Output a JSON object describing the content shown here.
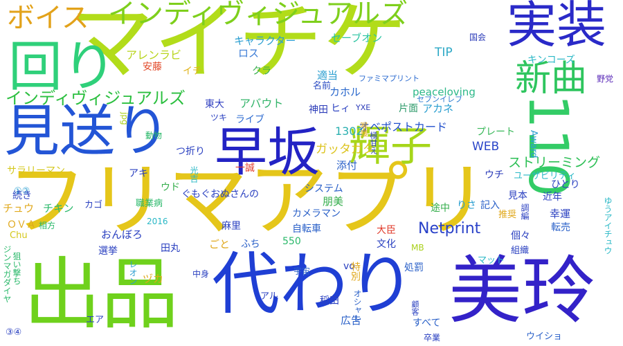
{
  "cloud": {
    "words": [
      {
        "text": "フリマアプリ",
        "color": "#e5c61a",
        "vertical": false
      },
      {
        "text": "マイチケ",
        "color": "#b2dc1a",
        "vertical": false
      },
      {
        "text": "美玲",
        "color": "#3322c8",
        "vertical": false
      },
      {
        "text": "出品",
        "color": "#6fd11c",
        "vertical": false
      },
      {
        "text": "代わり",
        "color": "#1f3fd4",
        "vertical": false
      },
      {
        "text": "早坂",
        "color": "#2323c4",
        "vertical": false
      },
      {
        "text": "見送り",
        "color": "#2355d6",
        "vertical": false
      },
      {
        "text": "回り",
        "color": "#2fd07a",
        "vertical": false
      },
      {
        "text": "実装",
        "color": "#2a2ac8",
        "vertical": false
      },
      {
        "text": "110",
        "color": "#33cc66",
        "vertical": true
      },
      {
        "text": "輝子",
        "color": "#a6d61a",
        "vertical": false
      },
      {
        "text": "新曲",
        "color": "#2ec55e",
        "vertical": false
      },
      {
        "text": "インディヴィジュアルズ",
        "color": "#7ecf1c",
        "vertical": false
      },
      {
        "text": "ボイス",
        "color": "#e2a21a",
        "vertical": false
      },
      {
        "text": "インディヴィジュアルズ",
        "color": "#2bbf3f",
        "vertical": false
      },
      {
        "text": "Netprint",
        "color": "#2840c8",
        "vertical": false
      },
      {
        "text": "ストリーミング",
        "color": "#2cbf55",
        "vertical": false
      },
      {
        "text": "WEB",
        "color": "#2a45c8",
        "vertical": false
      },
      {
        "text": "ガッタガタ",
        "color": "#dcc31c",
        "vertical": false
      },
      {
        "text": "オベポストカード",
        "color": "#2250cc",
        "vertical": false
      },
      {
        "text": "1302",
        "color": "#2bb0b0",
        "vertical": false
      },
      {
        "text": "アバウト",
        "color": "#33b46a",
        "vertical": false
      },
      {
        "text": "ライブ",
        "color": "#2d6bd0",
        "vertical": false
      },
      {
        "text": "東大",
        "color": "#2f3fc0",
        "vertical": false
      },
      {
        "text": "アレンラビ",
        "color": "#b8d41c",
        "vertical": false
      },
      {
        "text": "キャラクター",
        "color": "#2a9ed0",
        "vertical": false
      },
      {
        "text": "セーブオン",
        "color": "#2cc4a2",
        "vertical": false
      },
      {
        "text": "ロス",
        "color": "#3a7bd6",
        "vertical": false
      },
      {
        "text": "クラ",
        "color": "#33ad4a",
        "vertical": false
      },
      {
        "text": "イチ",
        "color": "#e0b41c",
        "vertical": false
      },
      {
        "text": "安藤",
        "color": "#e24a2a",
        "vertical": false
      },
      {
        "text": "TIP",
        "color": "#2da8c6",
        "vertical": false
      },
      {
        "text": "適当",
        "color": "#2a9ed0",
        "vertical": false
      },
      {
        "text": "名前",
        "color": "#2a4ac2",
        "vertical": false
      },
      {
        "text": "カホル",
        "color": "#2a68cc",
        "vertical": false
      },
      {
        "text": "ヒィ",
        "color": "#2a40c0",
        "vertical": false
      },
      {
        "text": "神田",
        "color": "#2a3ab8",
        "vertical": false
      },
      {
        "text": "YXE",
        "color": "#2a3ab8",
        "vertical": false
      },
      {
        "text": "peaceloving",
        "color": "#2cb888",
        "vertical": false
      },
      {
        "text": "アカネ",
        "color": "#2a9ed0",
        "vertical": false
      },
      {
        "text": "片面",
        "color": "#2c9a6a",
        "vertical": false
      },
      {
        "text": "ファミマプリント",
        "color": "#2a6ad0",
        "vertical": false
      },
      {
        "text": "セブンイレブ",
        "color": "#2a7ad0",
        "vertical": false
      },
      {
        "text": "国会",
        "color": "#2a3ab8",
        "vertical": false
      },
      {
        "text": "キンコーズ",
        "color": "#2ab8c6",
        "vertical": false
      },
      {
        "text": "野党",
        "color": "#5a2ab8",
        "vertical": false
      },
      {
        "text": "プレート",
        "color": "#3ab85a",
        "vertical": false
      },
      {
        "text": "Award",
        "color": "#2a9ed0",
        "vertical": true
      },
      {
        "text": "添付",
        "color": "#2a60c8",
        "vertical": false
      },
      {
        "text": "ウチ",
        "color": "#2a3ab8",
        "vertical": false
      },
      {
        "text": "ユーザビリティ",
        "color": "#2ab8c6",
        "vertical": false
      },
      {
        "text": "一誠",
        "color": "#e03a2a",
        "vertical": false
      },
      {
        "text": "動物",
        "color": "#2ab86a",
        "vertical": false
      },
      {
        "text": "つ折り",
        "color": "#2a40c0",
        "vertical": false
      },
      {
        "text": "ツキ",
        "color": "#2a40c0",
        "vertical": false
      },
      {
        "text": "jpg",
        "color": "#aad01c",
        "vertical": true
      },
      {
        "text": "サラリーマン",
        "color": "#d4c81c",
        "vertical": false
      },
      {
        "text": "アキ",
        "color": "#2a40c0",
        "vertical": false
      },
      {
        "text": "①②",
        "color": "#2a9ed0",
        "vertical": false
      },
      {
        "text": "ウド",
        "color": "#33ad4a",
        "vertical": false
      },
      {
        "text": "光吉",
        "color": "#2ab8c6",
        "vertical": true
      },
      {
        "text": "システム",
        "color": "#2a60c8",
        "vertical": false
      },
      {
        "text": "続き",
        "color": "#2a40c0",
        "vertical": false
      },
      {
        "text": "チュウ",
        "color": "#e0a81c",
        "vertical": false
      },
      {
        "text": "チキン",
        "color": "#2ab86a",
        "vertical": false
      },
      {
        "text": "カゴ",
        "color": "#2a40c0",
        "vertical": false
      },
      {
        "text": "ぐもぐおぬさんの",
        "color": "#2a40c0",
        "vertical": false
      },
      {
        "text": "朋美",
        "color": "#33ad4a",
        "vertical": false
      },
      {
        "text": "カメラマン",
        "color": "#2a60c8",
        "vertical": false
      },
      {
        "text": "職業病",
        "color": "#2ab86a",
        "vertical": false
      },
      {
        "text": "ＯＶＡ",
        "color": "#e0a81c",
        "vertical": false
      },
      {
        "text": "相方",
        "color": "#2ab86a",
        "vertical": false
      },
      {
        "text": "2016",
        "color": "#2ab8c6",
        "vertical": false
      },
      {
        "text": "Chu",
        "color": "#d4c81c",
        "vertical": false
      },
      {
        "text": "おんぼろ",
        "color": "#2a40c0",
        "vertical": false
      },
      {
        "text": "麻里",
        "color": "#2a40c0",
        "vertical": false
      },
      {
        "text": "自転車",
        "color": "#2a60c8",
        "vertical": false
      },
      {
        "text": "大臣",
        "color": "#e03a2a",
        "vertical": false
      },
      {
        "text": "ごと",
        "color": "#e0a81c",
        "vertical": false
      },
      {
        "text": "ふち",
        "color": "#2a60c8",
        "vertical": false
      },
      {
        "text": "田丸",
        "color": "#2a40c0",
        "vertical": false
      },
      {
        "text": "選挙",
        "color": "#2a40c0",
        "vertical": false
      },
      {
        "text": "550",
        "color": "#2ab86a",
        "vertical": false
      },
      {
        "text": "文化",
        "color": "#2a40c0",
        "vertical": false
      },
      {
        "text": "MB",
        "color": "#aad01c",
        "vertical": false
      },
      {
        "text": "途中",
        "color": "#33ad4a",
        "vertical": false
      },
      {
        "text": "りさ",
        "color": "#2a9ed0",
        "vertical": false
      },
      {
        "text": "記入",
        "color": "#2a60c8",
        "vertical": false
      },
      {
        "text": "見本",
        "color": "#2a40c0",
        "vertical": false
      },
      {
        "text": "近年",
        "color": "#2a40c0",
        "vertical": false
      },
      {
        "text": "ひとり",
        "color": "#2a40c0",
        "vertical": false
      },
      {
        "text": "幸運",
        "color": "#2a40c0",
        "vertical": false
      },
      {
        "text": "転売",
        "color": "#2a60c8",
        "vertical": false
      },
      {
        "text": "推奨",
        "color": "#e0a81c",
        "vertical": false
      },
      {
        "text": "個々",
        "color": "#2a40c0",
        "vertical": false
      },
      {
        "text": "組織",
        "color": "#2a40c0",
        "vertical": false
      },
      {
        "text": "マット",
        "color": "#2ab8c6",
        "vertical": false
      },
      {
        "text": "ゆうアイチュウ",
        "color": "#2ab8c6",
        "vertical": true
      },
      {
        "text": "調編",
        "color": "#2a40c0",
        "vertical": true
      },
      {
        "text": "処罰",
        "color": "#2a60c8",
        "vertical": false
      },
      {
        "text": "宇宙",
        "color": "#2a60c8",
        "vertical": false
      },
      {
        "text": "vo",
        "color": "#2a40c0",
        "vertical": false
      },
      {
        "text": "特別",
        "color": "#e0a81c",
        "vertical": true
      },
      {
        "text": "中身",
        "color": "#2a40c0",
        "vertical": false
      },
      {
        "text": "ヅカ",
        "color": "#e0a81c",
        "vertical": false
      },
      {
        "text": "レオン",
        "color": "#2a9ed0",
        "vertical": true
      },
      {
        "text": "ジンマガダイヤ",
        "color": "#2ab86a",
        "vertical": true
      },
      {
        "text": "狙い撃ち",
        "color": "#2ab86a",
        "vertical": true
      },
      {
        "text": "アル",
        "color": "#2a40c0",
        "vertical": false
      },
      {
        "text": "稲田",
        "color": "#2a40c0",
        "vertical": false
      },
      {
        "text": "オシャレ",
        "color": "#2a60c8",
        "vertical": true
      },
      {
        "text": "広告",
        "color": "#2a60c8",
        "vertical": false
      },
      {
        "text": "エア",
        "color": "#2a40c0",
        "vertical": false
      },
      {
        "text": "③④",
        "color": "#2a40c0",
        "vertical": false
      },
      {
        "text": "すべて",
        "color": "#2a60c8",
        "vertical": false
      },
      {
        "text": "卒業",
        "color": "#2a40c0",
        "vertical": false
      },
      {
        "text": "ウイショ",
        "color": "#2a60c8",
        "vertical": false
      },
      {
        "text": "顧客",
        "color": "#2a40c0",
        "vertical": true
      },
      {
        "text": "喉腰",
        "color": "#e0a81c",
        "vertical": true
      },
      {
        "text": "極甘え",
        "color": "#2a40c0",
        "vertical": true
      }
    ]
  }
}
